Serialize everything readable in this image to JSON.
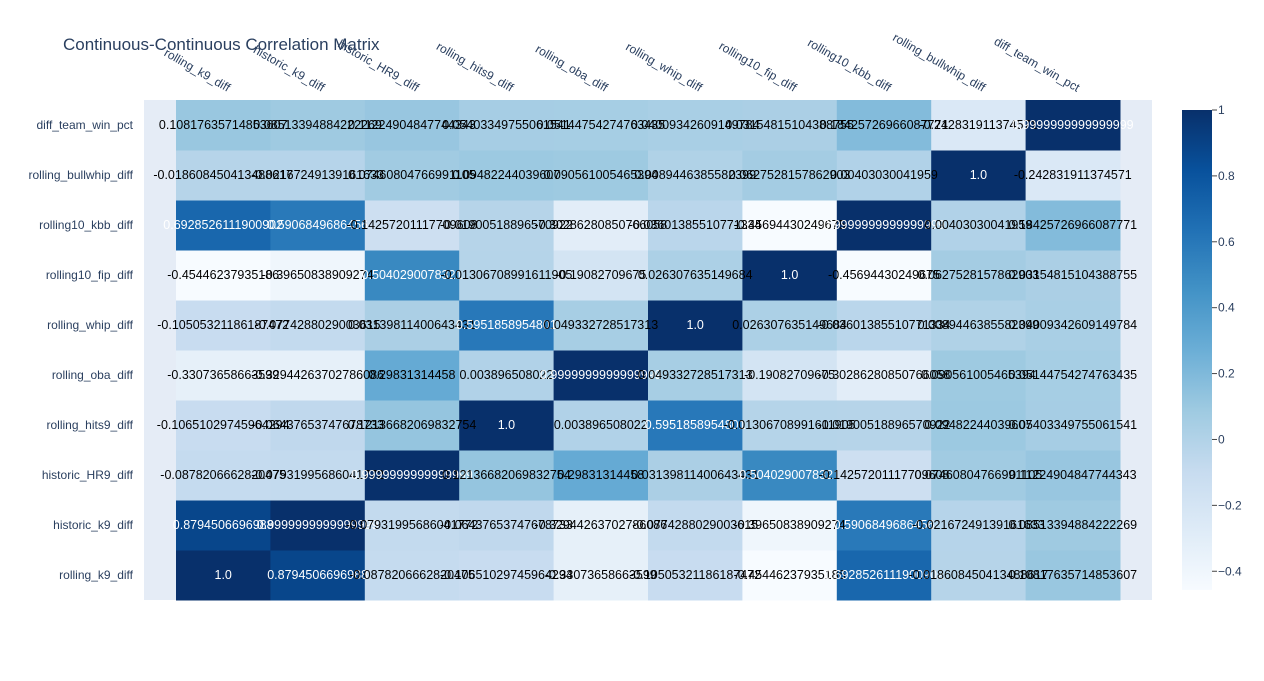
{
  "chart_data": {
    "type": "heatmap",
    "title": "Continuous-Continuous Correlation Matrix",
    "x": [
      "rolling_k9_diff",
      "historic_k9_diff",
      "historic_HR9_diff",
      "rolling_hits9_diff",
      "rolling_oba_diff",
      "rolling_whip_diff",
      "rolling10_fip_diff",
      "rolling10_kbb_diff",
      "rolling_bullwhip_diff",
      "diff_team_win_pct"
    ],
    "y": [
      "rolling_k9_diff",
      "historic_k9_diff",
      "historic_HR9_diff",
      "rolling_hits9_diff",
      "rolling_oba_diff",
      "rolling_whip_diff",
      "rolling10_fip_diff",
      "rolling10_kbb_diff",
      "rolling_bullwhip_diff",
      "diff_team_win_pct"
    ],
    "z": [
      [
        1.0,
        0.8794506696988,
        -0.0878206662820475,
        -0.10651029745964294,
        -0.33073658663599,
        -0.10505321186187472,
        -0.45446237935186,
        0.6928526111900902,
        -0.018608450413488617,
        0.10817635714853607
      ],
      [
        0.8794506696988,
        0.9999999999999999,
        -0.07931995686041772,
        -0.06437653747678733,
        -0.32944263702786086,
        -0.0774288029003615,
        -0.39650838909274,
        0.5906849686456,
        -0.02167249139161633,
        0.0851339488422227
      ],
      [
        -0.0878206662820475,
        -0.07931995686041772,
        0.9999999999999999,
        0.12136682069832753,
        0.29831314458,
        0.03139811400643431,
        0.5040290078321,
        -0.1425720111770961,
        0.07460804766991105,
        0.11224904847744344
      ],
      [
        -0.10651029745964294,
        -0.06437653747678733,
        0.12136682069832753,
        1.0,
        0.003896508022,
        0.5951858954801,
        -0.01306708991611905,
        -0.01900518896570922,
        0.09482244039607,
        0.05403349755061541
      ],
      [
        -0.33073658663599,
        -0.32944263702786086,
        0.29831314458,
        0.003896508022,
        0.9999999999999999,
        0.049332728517313,
        -0.19082709675,
        -0.30286280850766056,
        0.090561005465394,
        0.05144754274763435
      ],
      [
        -0.10505321186187472,
        -0.0774288029003615,
        0.03139811400643431,
        0.5951858954801,
        0.049332728517313,
        1.0,
        0.026307635149684,
        -0.03601385510771334,
        0.0089446385582399,
        0.04009342609149784
      ],
      [
        -0.45446237935186,
        -0.39650838909274,
        0.5040290078321,
        -0.01306708991611905,
        -0.19082709675,
        0.026307635149684,
        1.0,
        -0.45694430249675,
        0.0627528157862903,
        0.03154815104388755
      ],
      [
        0.6928526111900902,
        0.5906849686456,
        -0.1425720111770961,
        -0.01900518896570922,
        -0.30286280850766056,
        -0.03601385510771334,
        -0.45694430249675,
        0.9999999999999999,
        0.00403030041959,
        0.18425726966087771
      ],
      [
        -0.018608450413488617,
        -0.02167249139161633,
        0.07460804766991105,
        0.09482244039607,
        0.090561005465394,
        0.0089446385582399,
        0.0627528157862903,
        0.00403030041959,
        1.0,
        -0.242831911374571
      ],
      [
        0.10817635714853607,
        0.0851339488422227,
        0.11224904847744344,
        0.05403349755061541,
        0.05144754274763435,
        0.04009342609149784,
        0.03154815104388755,
        0.18425726966087771,
        -0.242831911374571,
        0.9999999999999999
      ]
    ],
    "labels": [
      [
        "1.0",
        "0.8794506696988",
        "-0.0878206662820475",
        "-0.10651029745964294",
        "-0.33073658663599",
        "-0.10505321186187472",
        "-0.45446237935186",
        "0.6928526111900902",
        "-0.018608450413488617",
        "0.10817635714853607"
      ],
      [
        "0.8794506696988",
        "0.9999999999999999",
        "-0.07931995686041772",
        "-0.06437653747678733",
        "-0.32944263702786086",
        "-0.0774288029003615",
        "-0.39650838909274",
        "0.5906849686456",
        "-0.02167249139161633",
        "0.08513394884222269"
      ],
      [
        "-0.0878206662820475",
        "-0.07931995686041772",
        "0.9999999999999999",
        "0.12136682069832754",
        "0.29831314458",
        "0.03139811400643431",
        "0.5040290078321",
        "-0.14257201117709608",
        "0.07460804766991105",
        "0.11224904847744343"
      ],
      [
        "-0.10651029745964294",
        "-0.06437653747678733",
        "0.12136682069832754",
        "1.0",
        "0.003896508022",
        "0.5951858954801",
        "-0.01306708991611905",
        "-0.01900518896570922",
        "0.09482244039607",
        "0.05403349755061541"
      ],
      [
        "-0.33073658663599",
        "-0.32944263702786086",
        "0.29831314458",
        "0.003896508022",
        "0.9999999999999999",
        "0.049332728517313",
        "-0.19082709675",
        "-0.30286280850766058",
        "0.090561005465394",
        "0.05144754274763435"
      ],
      [
        "-0.10505321186187472",
        "-0.0774288029003615",
        "0.03139811400643431",
        "0.5951858954801",
        "0.049332728517313",
        "1.0",
        "0.026307635149684",
        "-0.03601385510771334",
        "0.0089446385582399",
        "0.04009342609149784"
      ],
      [
        "-0.45446237935186",
        "-0.39650838909274",
        "0.5040290078321",
        "-0.01306708991611905",
        "-0.19082709675",
        "0.026307635149684",
        "1.0",
        "-0.45694430249675",
        "0.0627528157862903",
        "0.03154815104388755"
      ],
      [
        "0.6928526111900902",
        "0.5906849686456",
        "-0.14257201117709608",
        "-0.01900518896570922",
        "-0.30286280850766058",
        "-0.03601385510771334",
        "-0.45694430249675",
        "0.9999999999999999",
        "0.00403030041959",
        "0.18425726966087771"
      ],
      [
        "-0.018608450413488617",
        "-0.02167249139161633",
        "0.07460804766991105",
        "0.09482244039607",
        "0.090561005465394",
        "0.0089446385582399",
        "0.0627528157862903",
        "0.00403030041959",
        "1.0",
        "-0.242831911374571"
      ],
      [
        "0.10817635714853607",
        "0.08513394884222269",
        "0.11224904847744343",
        "0.05403349755061541",
        "0.05144754274763435",
        "0.04009342609149784",
        "0.03154815104388755",
        "0.18425726966087771",
        "-0.242831911374571",
        "0.9999999999999999"
      ]
    ],
    "colorscale": "Blues",
    "zrange": [
      -0.4569,
      1.0
    ],
    "colorbar": {
      "ticks": [
        -0.4,
        -0.2,
        0,
        0.2,
        0.4,
        0.6,
        0.8,
        1
      ]
    },
    "plot_background": "#e5ecf6"
  }
}
